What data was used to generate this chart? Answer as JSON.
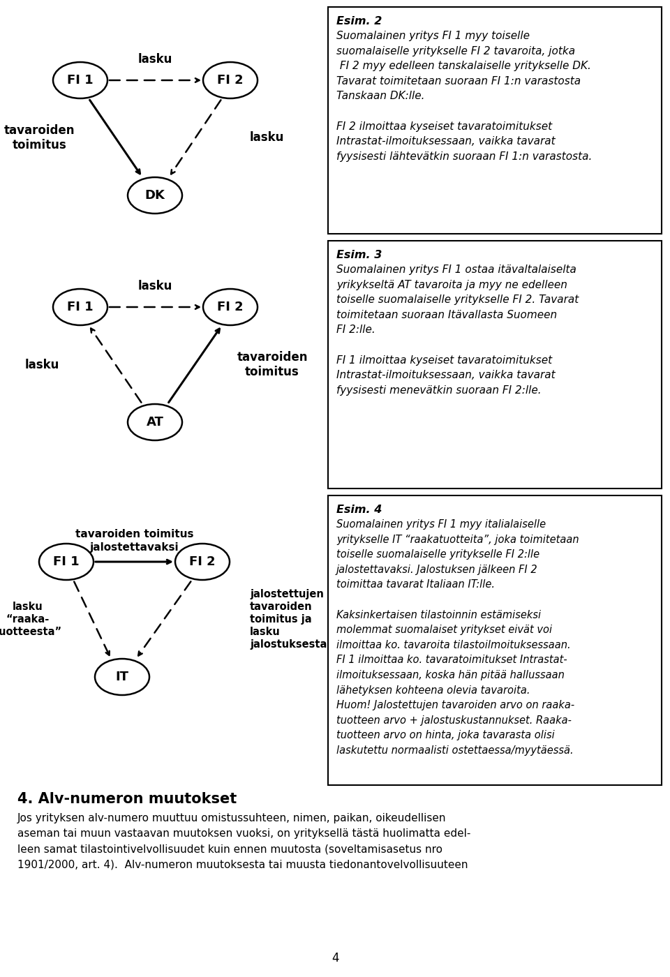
{
  "bg_color": "#ffffff",
  "esim2_title": "Esim. 2",
  "esim2_text": "Suomalainen yritys FI 1 myy toiselle\nsuomalaiselle yritykselle FI 2 tavaroita, jotka\n FI 2 myy edelleen tanskalaiselle yritykselle DK.\nTavarat toimitetaan suoraan FI 1:n varastosta\nTanskaan DK:lle.\n\nFI 2 ilmoittaa kyseiset tavaratoimitukset\nIntrastat-ilmoituksessaan, vaikka tavarat\nfyysisesti lähtevätkin suoraan FI 1:n varastosta.",
  "esim3_title": "Esim. 3",
  "esim3_text": "Suomalainen yritys FI 1 ostaa itävaltalaiselta\nyrikykseltä AT tavaroita ja myy ne edelleen\ntoiselle suomalaiselle yritykselle FI 2. Tavarat\ntoimitetaan suoraan Itävallasta Suomeen\nFI 2:lle.\n\nFI 1 ilmoittaa kyseiset tavaratoimitukset\nIntrastat-ilmoituksessaan, vaikka tavarat\nfyysisesti menevätkin suoraan FI 2:lle.",
  "esim4_title": "Esim. 4",
  "esim4_text": "Suomalainen yritys FI 1 myy italialaiselle\nyritykselle IT “raakatuotteita”, joka toimitetaan\ntoiselle suomalaiselle yritykselle FI 2:lle\njalostettavaksi. Jalostuksen jälkeen FI 2\ntoimittaa tavarat Italiaan IT:lle.\n\nKaksinkertaisen tilastoinnin estämiseksi\nmolemmat suomalaiset yritykset eivät voi\nilmoittaa ko. tavaroita tilastoilmoituksessaan.\nFI 1 ilmoittaa ko. tavaratoimitukset Intrastat-\nilmoituksessaan, koska hän pitää hallussaan\nlähetyksen kohteena olevia tavaroita.\nHuom! Jalostettujen tavaroiden arvo on raaka-\ntuotteen arvo + jalostuskustannukset. Raaka-\ntuotteen arvo on hinta, joka tavarasta olisi\nlaskutettu normaalisti ostettaessa/myytäessä.",
  "footer_title": "4. Alv-numeron muutokset",
  "footer_text": "Jos yrityksen alv-numero muuttuu omistussuhteen, nimen, paikan, oikeudellisen\naseman tai muun vastaavan muutoksen vuoksi, on yrityksellä tästä huolimatta edel-\nleen samat tilastointivelvollisuudet kuin ennen muutosta (soveltamisasetus nro\n1901/2000, art. 4).  Alv-numeron muutoksesta tai muusta tiedonantovelvollisuuteen",
  "page_num": "4"
}
